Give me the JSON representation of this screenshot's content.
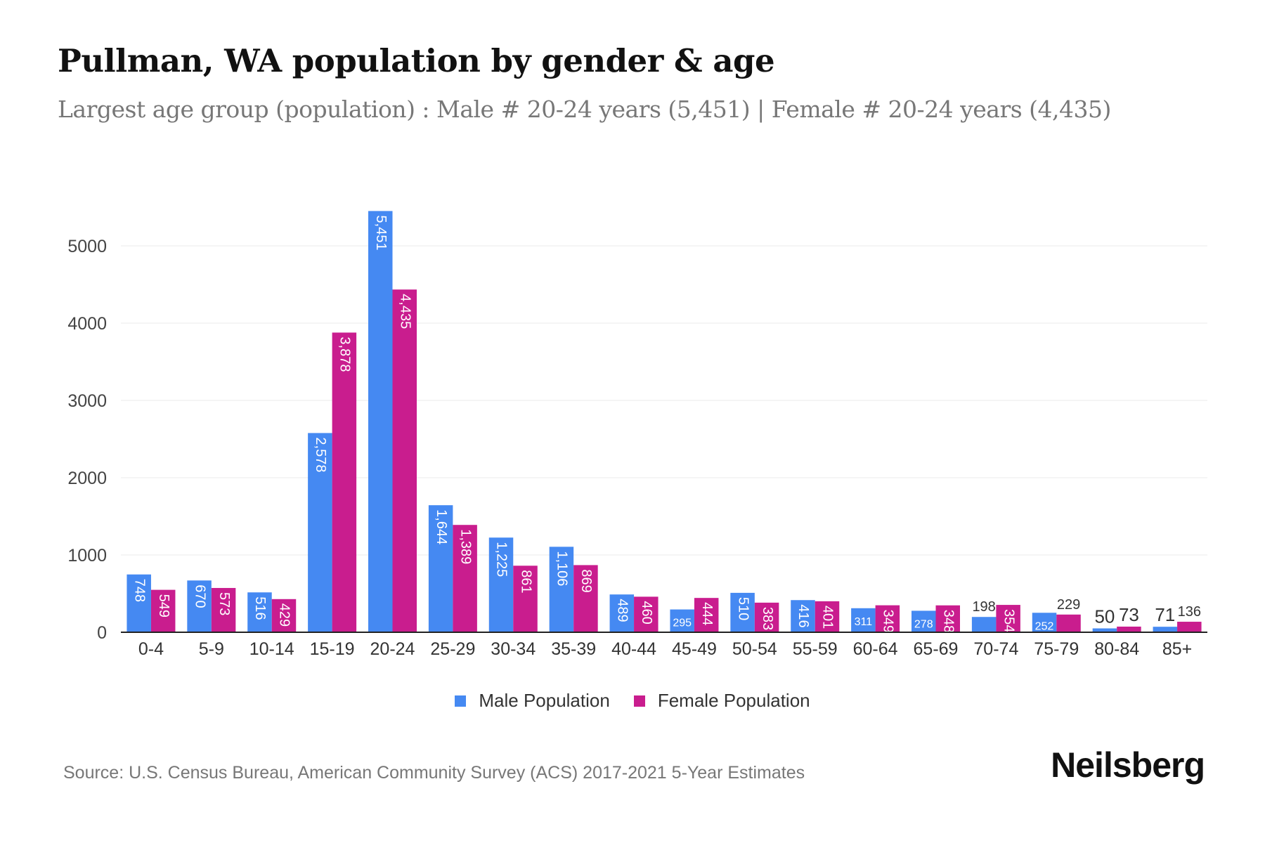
{
  "title": "Pullman, WA population by gender & age",
  "subtitle": "Largest age group (population) : Male # 20-24 years (5,451) | Female # 20-24 years (4,435)",
  "source": "Source: U.S. Census Bureau, American Community Survey (ACS) 2017-2021 5-Year Estimates",
  "logo": "Neilsberg",
  "chart_data": {
    "type": "bar",
    "categories": [
      "0-4",
      "5-9",
      "10-14",
      "15-19",
      "20-24",
      "25-29",
      "30-34",
      "35-39",
      "40-44",
      "45-49",
      "50-54",
      "55-59",
      "60-64",
      "65-69",
      "70-74",
      "75-79",
      "80-84",
      "85+"
    ],
    "series": [
      {
        "name": "Male Population",
        "color": "#4589F2",
        "values": [
          748,
          670,
          516,
          2578,
          5451,
          1644,
          1225,
          1106,
          489,
          295,
          510,
          416,
          311,
          278,
          198,
          252,
          50,
          71
        ]
      },
      {
        "name": "Female Population",
        "color": "#C91D8E",
        "values": [
          549,
          573,
          429,
          3878,
          4435,
          1389,
          861,
          869,
          460,
          444,
          383,
          401,
          349,
          348,
          354,
          229,
          73,
          136
        ]
      }
    ],
    "data_labels": {
      "male": [
        "748",
        "670",
        "516",
        "2,578",
        "5,451",
        "1,644",
        "1,225",
        "1,106",
        "489",
        "295",
        "510",
        "416",
        "311",
        "278",
        "198",
        "252",
        "50",
        "71"
      ],
      "female": [
        "549",
        "573",
        "429",
        "3,878",
        "4,435",
        "1,389",
        "861",
        "869",
        "460",
        "444",
        "383",
        "401",
        "349",
        "348",
        "354",
        "229",
        "73",
        "136"
      ]
    },
    "yticks": [
      "0",
      "1000",
      "2000",
      "3000",
      "4000",
      "5000"
    ],
    "ylim": [
      0,
      5600
    ],
    "grid": true,
    "legend": "bottom"
  }
}
